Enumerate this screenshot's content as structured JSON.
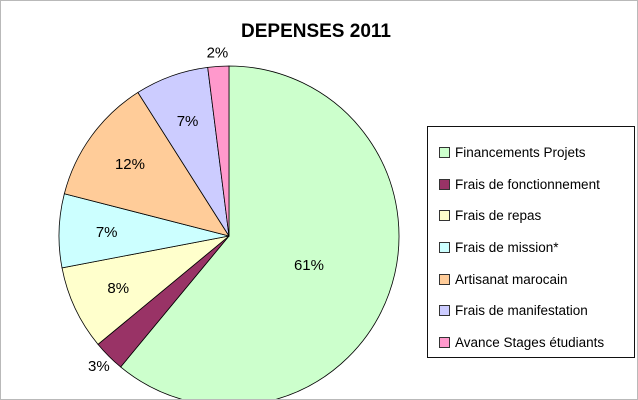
{
  "chart_data": {
    "type": "pie",
    "title": "DEPENSES 2011",
    "legend_position": "right",
    "slices": [
      {
        "name": "Financements Projets",
        "value": 61,
        "label": "61%",
        "color": "#ccffcc"
      },
      {
        "name": "Frais de fonctionnement",
        "value": 3,
        "label": "3%",
        "color": "#993366"
      },
      {
        "name": "Frais de repas",
        "value": 8,
        "label": "8%",
        "color": "#ffffcc"
      },
      {
        "name": "Frais de mission*",
        "value": 7,
        "label": "7%",
        "color": "#ccffff"
      },
      {
        "name": "Artisanat marocain",
        "value": 12,
        "label": "12%",
        "color": "#ffcc99"
      },
      {
        "name": "Frais de manifestation",
        "value": 7,
        "label": "7%",
        "color": "#ccccff"
      },
      {
        "name": "Avance Stages étudiants",
        "value": 2,
        "label": "2%",
        "color": "#ff99cc"
      }
    ]
  }
}
